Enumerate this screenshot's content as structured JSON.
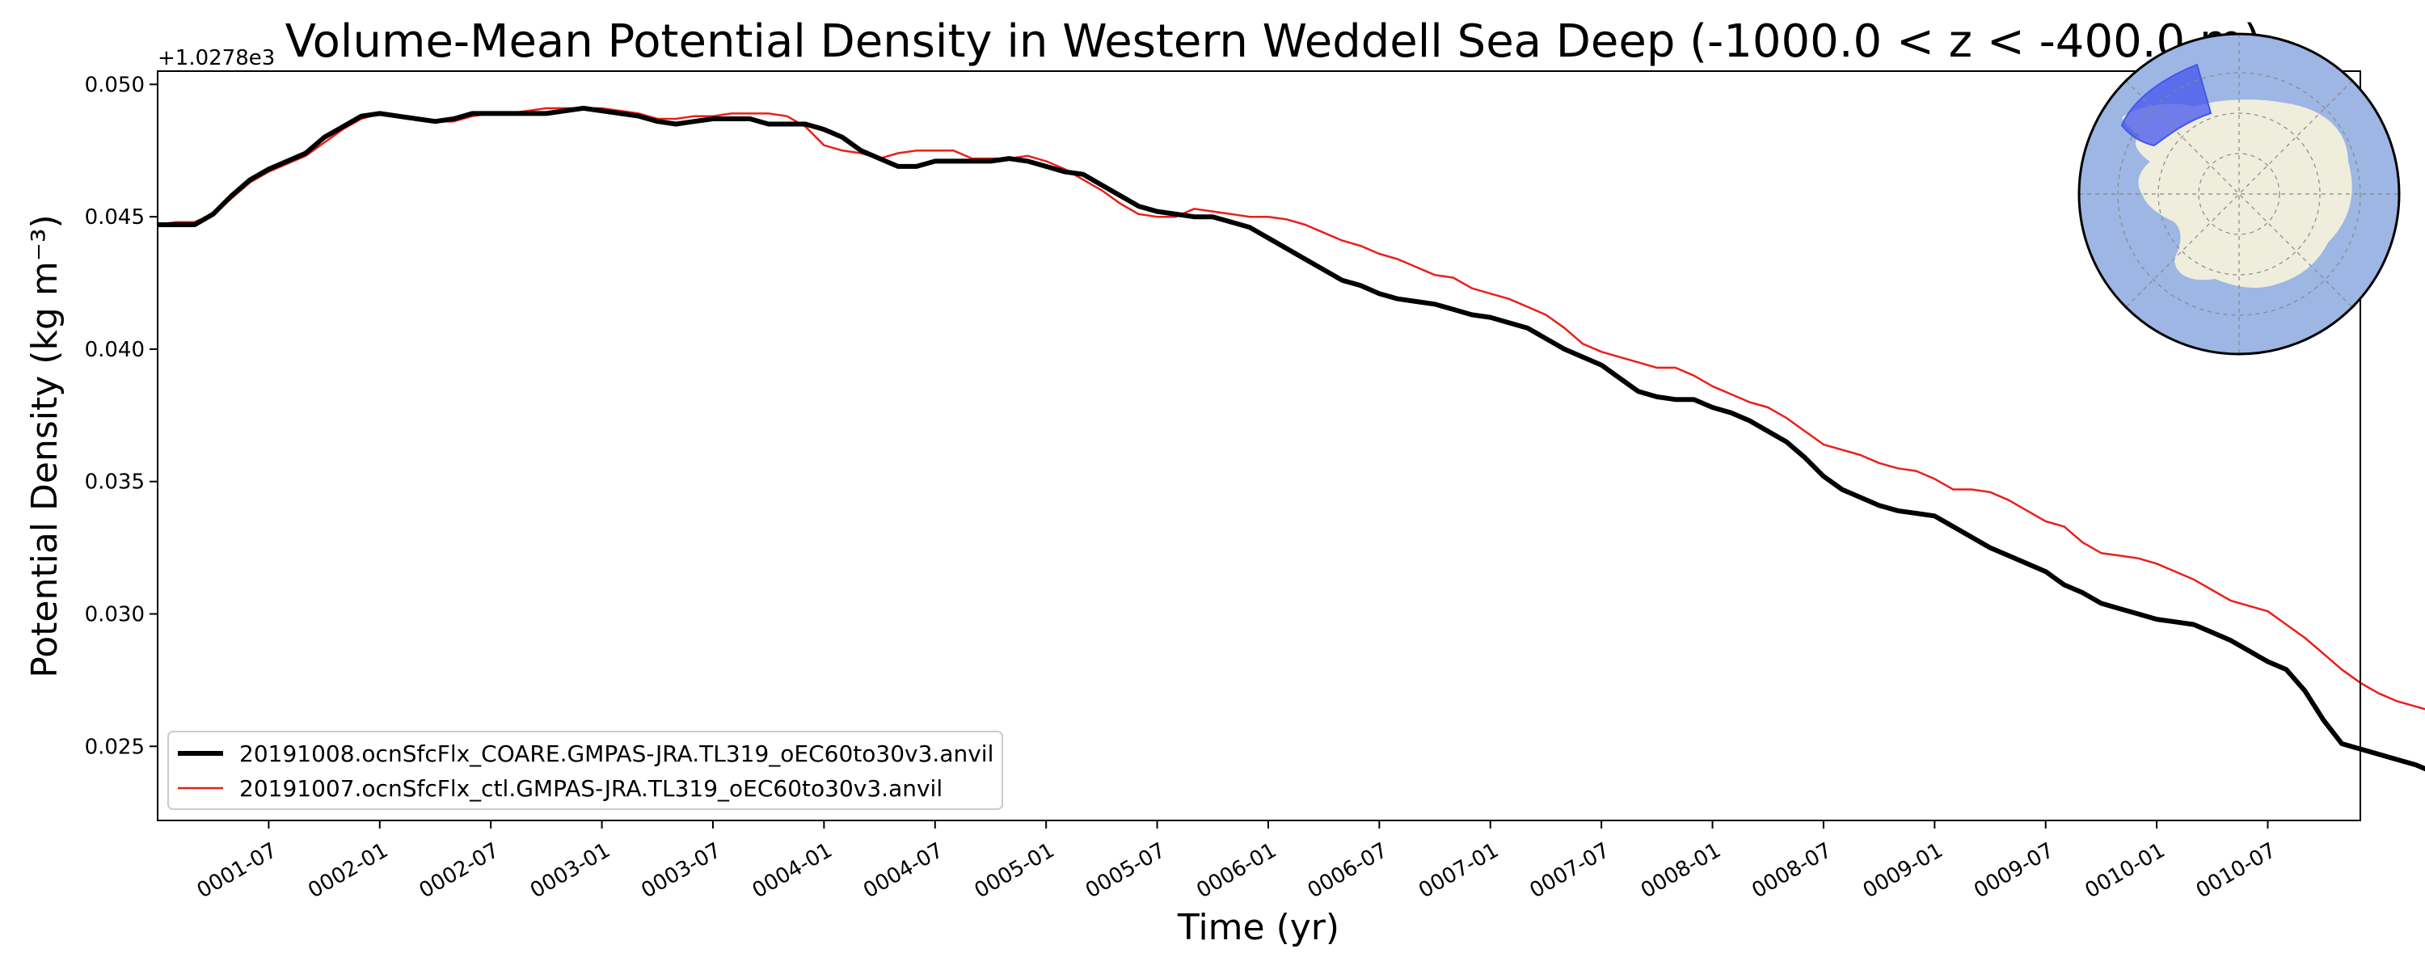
{
  "chart_data": {
    "type": "line",
    "title": "Volume-Mean Potential Density in Western Weddell Sea Deep (-1000.0 < z < -400.0 m)",
    "xlabel": "Time (yr)",
    "ylabel": "Potential Density (kg m⁻³)",
    "offset_label": "+1.0278e3",
    "ylim": [
      0.0222,
      0.0505
    ],
    "xlim_months": [
      0,
      119
    ],
    "x_tick_labels": [
      "0001-07",
      "0002-01",
      "0002-07",
      "0003-01",
      "0003-07",
      "0004-01",
      "0004-07",
      "0005-01",
      "0005-07",
      "0006-01",
      "0006-07",
      "0007-01",
      "0007-07",
      "0008-01",
      "0008-07",
      "0009-01",
      "0009-07",
      "0010-01",
      "0010-07"
    ],
    "y_tick_values": [
      0.025,
      0.03,
      0.035,
      0.04,
      0.045,
      0.05
    ],
    "y_tick_labels": [
      "0.025",
      "0.030",
      "0.035",
      "0.040",
      "0.045",
      "0.050"
    ],
    "grid": false,
    "legend_position": "lower-left",
    "series": [
      {
        "name": "20191008.ocnSfcFlx_COARE.GMPAS-JRA.TL319_oEC60to30v3.anvil",
        "color": "#000000",
        "line_width": "thick",
        "values": [
          0.0447,
          0.0447,
          0.0447,
          0.0451,
          0.0458,
          0.0464,
          0.0468,
          0.0471,
          0.0474,
          0.048,
          0.0484,
          0.0488,
          0.0489,
          0.0488,
          0.0487,
          0.0486,
          0.0487,
          0.0489,
          0.0489,
          0.0489,
          0.0489,
          0.0489,
          0.049,
          0.0491,
          0.049,
          0.0489,
          0.0488,
          0.0486,
          0.0485,
          0.0486,
          0.0487,
          0.0487,
          0.0487,
          0.0485,
          0.0485,
          0.0485,
          0.0483,
          0.048,
          0.0475,
          0.0472,
          0.0469,
          0.0469,
          0.0471,
          0.0471,
          0.0471,
          0.0471,
          0.0472,
          0.0471,
          0.0469,
          0.0467,
          0.0466,
          0.0462,
          0.0458,
          0.0454,
          0.0452,
          0.0451,
          0.045,
          0.045,
          0.0448,
          0.0446,
          0.0442,
          0.0438,
          0.0434,
          0.043,
          0.0426,
          0.0424,
          0.0421,
          0.0419,
          0.0418,
          0.0417,
          0.0415,
          0.0413,
          0.0412,
          0.041,
          0.0408,
          0.0404,
          0.04,
          0.0397,
          0.0394,
          0.0389,
          0.0384,
          0.0382,
          0.0381,
          0.0381,
          0.0378,
          0.0376,
          0.0373,
          0.0369,
          0.0365,
          0.0359,
          0.0352,
          0.0347,
          0.0344,
          0.0341,
          0.0339,
          0.0338,
          0.0337,
          0.0333,
          0.0329,
          0.0325,
          0.0322,
          0.0319,
          0.0316,
          0.0311,
          0.0308,
          0.0304,
          0.0302,
          0.03,
          0.0298,
          0.0297,
          0.0296,
          0.0293,
          0.029,
          0.0286,
          0.0282,
          0.0279,
          0.0271,
          0.026,
          0.0251,
          0.0249,
          0.0247,
          0.0245,
          0.0243,
          0.024,
          0.0236
        ]
      },
      {
        "name": "20191007.ocnSfcFlx_ctl.GMPAS-JRA.TL319_oEC60to30v3.anvil",
        "color": "#e8201a",
        "line_width": "thin",
        "values": [
          0.0447,
          0.0448,
          0.0448,
          0.0451,
          0.0457,
          0.0463,
          0.0467,
          0.047,
          0.0473,
          0.0478,
          0.0483,
          0.0487,
          0.0489,
          0.0488,
          0.0487,
          0.0486,
          0.0486,
          0.0488,
          0.0489,
          0.0489,
          0.049,
          0.0491,
          0.0491,
          0.0491,
          0.0491,
          0.049,
          0.0489,
          0.0487,
          0.0487,
          0.0488,
          0.0488,
          0.0489,
          0.0489,
          0.0489,
          0.0488,
          0.0484,
          0.0477,
          0.0475,
          0.0474,
          0.0472,
          0.0474,
          0.0475,
          0.0475,
          0.0475,
          0.0472,
          0.0472,
          0.0472,
          0.0473,
          0.0471,
          0.0468,
          0.0464,
          0.046,
          0.0455,
          0.0451,
          0.045,
          0.045,
          0.0453,
          0.0452,
          0.0451,
          0.045,
          0.045,
          0.0449,
          0.0447,
          0.0444,
          0.0441,
          0.0439,
          0.0436,
          0.0434,
          0.0431,
          0.0428,
          0.0427,
          0.0423,
          0.0421,
          0.0419,
          0.0416,
          0.0413,
          0.0408,
          0.0402,
          0.0399,
          0.0397,
          0.0395,
          0.0393,
          0.0393,
          0.039,
          0.0386,
          0.0383,
          0.038,
          0.0378,
          0.0374,
          0.0369,
          0.0364,
          0.0362,
          0.036,
          0.0357,
          0.0355,
          0.0354,
          0.0351,
          0.0347,
          0.0347,
          0.0346,
          0.0343,
          0.0339,
          0.0335,
          0.0333,
          0.0327,
          0.0323,
          0.0322,
          0.0321,
          0.0319,
          0.0316,
          0.0313,
          0.0309,
          0.0305,
          0.0303,
          0.0301,
          0.0296,
          0.0291,
          0.0285,
          0.0279,
          0.0274,
          0.027,
          0.0267,
          0.0265,
          0.0263,
          0.0259
        ]
      }
    ]
  },
  "inset_map": {
    "ocean_color": "#9db6e3",
    "land_color": "#efeedd",
    "region_color": "#4455ee",
    "gridline_color": "#888888"
  }
}
